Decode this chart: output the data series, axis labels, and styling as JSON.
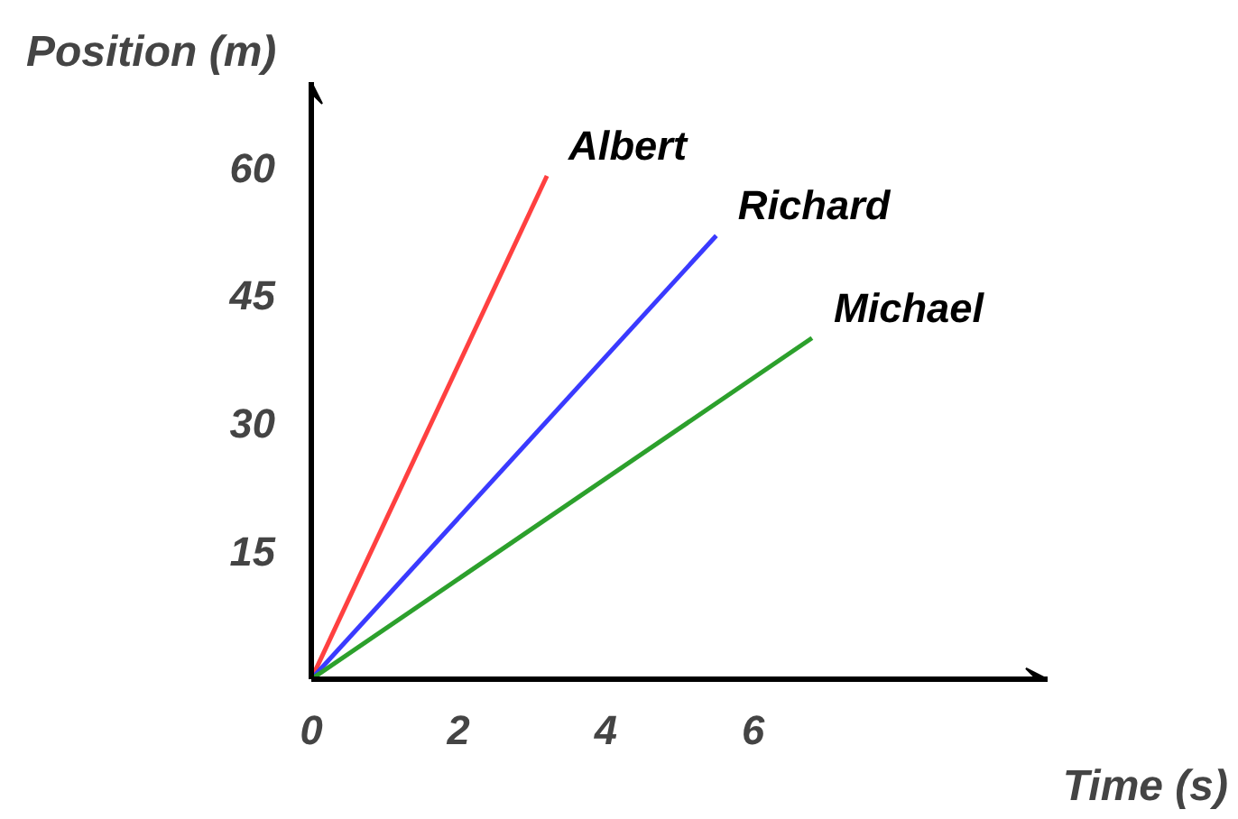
{
  "chart_data": {
    "type": "line",
    "xlabel": "Time (s)",
    "ylabel": "Position (m)",
    "xlim": [
      0,
      10
    ],
    "ylim": [
      0,
      70
    ],
    "xticks": [
      0,
      2,
      4,
      6
    ],
    "yticks": [
      15,
      30,
      45,
      60
    ],
    "grid": false,
    "marker": "none",
    "series": [
      {
        "name": "Albert",
        "color": "#ff4040",
        "x": [
          0,
          3.2
        ],
        "values": [
          0,
          59
        ]
      },
      {
        "name": "Richard",
        "color": "#3a3aff",
        "x": [
          0,
          5.5
        ],
        "values": [
          0,
          52
        ]
      },
      {
        "name": "Michael",
        "color": "#2ca02c",
        "x": [
          0,
          6.8
        ],
        "values": [
          0,
          40
        ]
      }
    ]
  }
}
